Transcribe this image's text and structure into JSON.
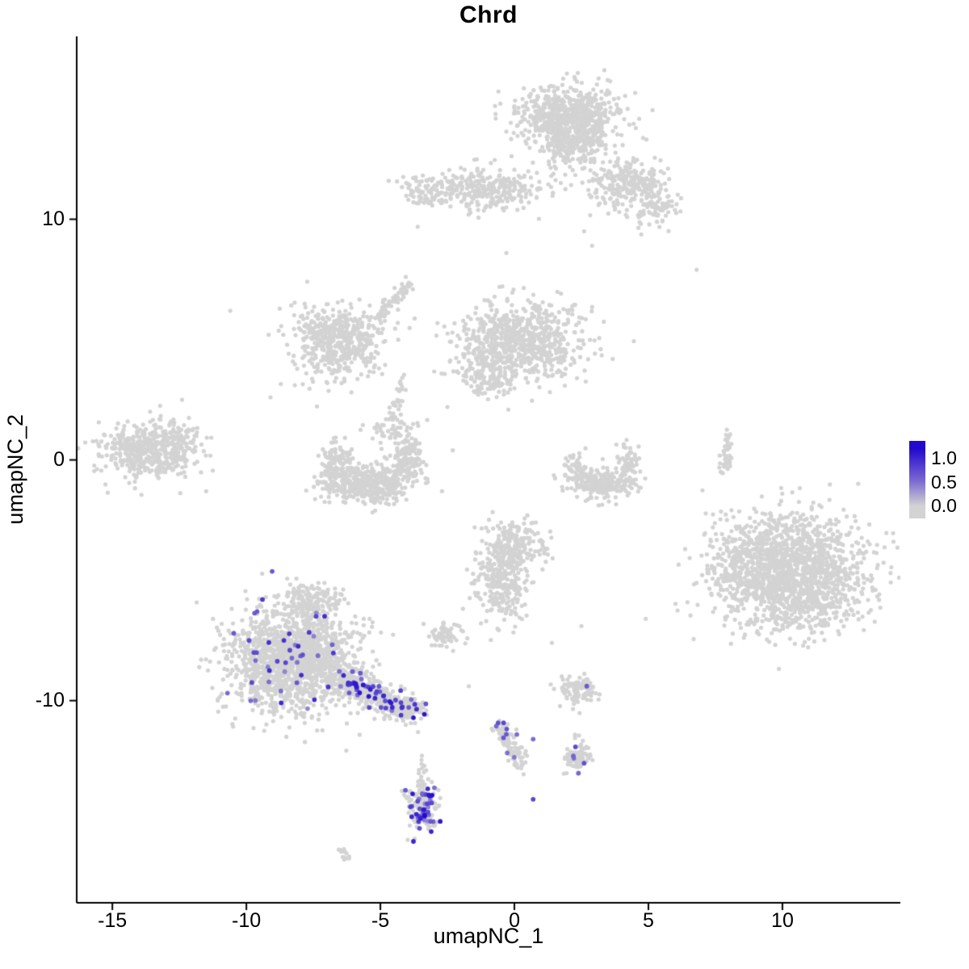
{
  "chart_data": {
    "type": "scatter",
    "title": "Chrd",
    "xlabel": "umapNC_1",
    "ylabel": "umapNC_2",
    "xlim": [
      -16.33,
      14.4
    ],
    "ylim": [
      -18.4,
      17.6
    ],
    "x_ticks": [
      -15,
      -10,
      -5,
      0,
      5,
      10
    ],
    "y_ticks": [
      -10,
      0,
      10
    ],
    "grid": false,
    "point_color_low": "#d3d3d3",
    "point_color_high": "#2209ce",
    "clusters": [
      {
        "name": "top-main",
        "cx": 2.0,
        "cy": 14.3,
        "sx": 0.95,
        "sy": 0.62,
        "n": 650
      },
      {
        "name": "top-lower",
        "cx": 2.2,
        "cy": 13.0,
        "sx": 0.55,
        "sy": 0.5,
        "n": 200
      },
      {
        "name": "top-right-arm",
        "cx": 4.2,
        "cy": 11.5,
        "sx": 0.75,
        "sy": 0.55,
        "n": 240
      },
      {
        "name": "top-right-tip",
        "cx": 5.3,
        "cy": 10.5,
        "sx": 0.45,
        "sy": 0.42,
        "n": 80
      },
      {
        "name": "band",
        "cx": -1.2,
        "cy": 11.3,
        "sx": 1.25,
        "sy": 0.42,
        "n": 320
      },
      {
        "name": "band-left",
        "cx": -3.3,
        "cy": 11.1,
        "sx": 0.4,
        "sy": 0.28,
        "n": 55
      },
      {
        "name": "midleft-main",
        "cx": -6.6,
        "cy": 4.9,
        "sx": 0.85,
        "sy": 0.75,
        "n": 520
      },
      {
        "name": "midleft-arm",
        "type": "line",
        "x1": -5.3,
        "y1": 5.7,
        "x2": -3.9,
        "y2": 7.4,
        "th": 0.16,
        "n": 65
      },
      {
        "name": "mid-chain",
        "type": "line",
        "x1": -4.45,
        "y1": 1.7,
        "x2": -4.2,
        "y2": 3.4,
        "th": 0.12,
        "n": 30
      },
      {
        "name": "middle-main",
        "cx": 0.2,
        "cy": 4.9,
        "sx": 1.15,
        "sy": 0.85,
        "n": 750
      },
      {
        "name": "middle-tail",
        "cx": -1.1,
        "cy": 3.4,
        "sx": 0.5,
        "sy": 0.4,
        "n": 110
      },
      {
        "name": "cup-left",
        "cx": -6.6,
        "cy": -0.1,
        "sx": 0.3,
        "sy": 0.5,
        "n": 120
      },
      {
        "name": "cup-bottom",
        "cx": -5.4,
        "cy": -1.0,
        "sx": 0.85,
        "sy": 0.38,
        "n": 420
      },
      {
        "name": "cup-right",
        "cx": -4.0,
        "cy": 0.2,
        "sx": 0.3,
        "sy": 0.5,
        "n": 130
      },
      {
        "name": "cup-top",
        "cx": -4.7,
        "cy": 1.2,
        "sx": 0.5,
        "sy": 0.28,
        "n": 45
      },
      {
        "name": "far-left",
        "cx": -13.7,
        "cy": 0.4,
        "sx": 0.85,
        "sy": 0.58,
        "n": 470
      },
      {
        "name": "far-left-halo",
        "cx": -12.3,
        "cy": 0.9,
        "sx": 0.5,
        "sy": 0.4,
        "n": 55
      },
      {
        "name": "right-cup-bottom",
        "cx": 3.2,
        "cy": -1.0,
        "sx": 0.6,
        "sy": 0.33,
        "n": 210
      },
      {
        "name": "right-cup-left",
        "cx": 2.3,
        "cy": -0.3,
        "sx": 0.22,
        "sy": 0.4,
        "n": 55
      },
      {
        "name": "right-cup-right",
        "cx": 4.2,
        "cy": -0.2,
        "sx": 0.22,
        "sy": 0.45,
        "n": 65
      },
      {
        "name": "streak",
        "type": "line",
        "x1": 8.0,
        "y1": 1.2,
        "x2": 7.8,
        "y2": -0.4,
        "th": 0.1,
        "n": 45
      },
      {
        "name": "big-right",
        "cx": 10.3,
        "cy": -4.7,
        "sx": 1.35,
        "sy": 1.2,
        "n": 1700
      },
      {
        "name": "big-right-west",
        "cx": 8.2,
        "cy": -4.3,
        "sx": 0.5,
        "sy": 0.9,
        "n": 90
      },
      {
        "name": "center-low-top",
        "cx": 0.0,
        "cy": -3.6,
        "sx": 0.6,
        "sy": 0.5,
        "n": 230
      },
      {
        "name": "center-low-bottom",
        "cx": -0.5,
        "cy": -5.2,
        "sx": 0.5,
        "sy": 0.75,
        "n": 240
      },
      {
        "name": "bottom-left-main",
        "cx": -8.3,
        "cy": -8.3,
        "sx": 1.15,
        "sy": 1.05,
        "n": 1500,
        "expr_frac": 0.025,
        "expr_min": 0.35,
        "expr_max": 0.85
      },
      {
        "name": "bottom-left-top",
        "cx": -7.6,
        "cy": -5.9,
        "sx": 0.6,
        "sy": 0.45,
        "n": 170
      },
      {
        "name": "bottom-left-arm",
        "type": "line",
        "x1": -6.6,
        "y1": -9.0,
        "x2": -4.0,
        "y2": -10.4,
        "th": 0.3,
        "n": 470,
        "expr_frac": 0.09,
        "expr_min": 0.4,
        "expr_max": 0.95
      },
      {
        "name": "arm-tip",
        "cx": -3.9,
        "cy": -10.4,
        "sx": 0.26,
        "sy": 0.3,
        "n": 70,
        "expr_frac": 0.12,
        "expr_min": 0.5,
        "expr_max": 0.95
      },
      {
        "name": "small-blob",
        "cx": -2.6,
        "cy": -7.3,
        "sx": 0.27,
        "sy": 0.22,
        "n": 65
      },
      {
        "name": "small-right-9",
        "cx": 2.4,
        "cy": -9.5,
        "sx": 0.33,
        "sy": 0.27,
        "n": 90
      },
      {
        "name": "chain-down",
        "type": "line",
        "x1": -0.6,
        "y1": -11.0,
        "x2": 0.3,
        "y2": -12.7,
        "th": 0.18,
        "n": 90,
        "expr_frac": 0.05,
        "expr_min": 0.4,
        "expr_max": 0.7
      },
      {
        "name": "small-right-12",
        "cx": 2.4,
        "cy": -12.4,
        "sx": 0.3,
        "sy": 0.27,
        "n": 75,
        "expr_frac": 0.04,
        "expr_min": 0.4,
        "expr_max": 0.7
      },
      {
        "name": "bottom-dense",
        "cx": -3.4,
        "cy": -14.4,
        "sx": 0.28,
        "sy": 0.6,
        "n": 160,
        "expr_frac": 0.3,
        "expr_min": 0.35,
        "expr_max": 1.0
      },
      {
        "name": "bottom-dense-tail",
        "type": "line",
        "x1": -3.6,
        "y1": -12.3,
        "x2": -3.4,
        "y2": -13.5,
        "th": 0.1,
        "n": 14
      },
      {
        "name": "tiny-chain",
        "type": "line",
        "x1": -6.6,
        "y1": -16.1,
        "x2": -6.2,
        "y2": -16.6,
        "th": 0.08,
        "n": 12
      },
      {
        "name": "link-9-12",
        "type": "line",
        "x1": 2.3,
        "y1": -10.0,
        "x2": 2.3,
        "y2": -11.8,
        "th": 0.1,
        "n": 8
      }
    ],
    "singles": [
      [
        -10.6,
        6.2
      ],
      [
        2.6,
        9.5
      ],
      [
        2.9,
        8.9
      ],
      [
        6.8,
        7.9
      ],
      [
        -2.3,
        0.4
      ],
      [
        -2.7,
        -1.3
      ],
      [
        1.4,
        -7.6
      ],
      [
        2.5,
        -6.9
      ],
      [
        4.9,
        -6.6
      ],
      [
        -11.5,
        -1.3
      ],
      [
        -9.1,
        2.6
      ],
      [
        -2.5,
        2.2
      ],
      [
        -0.3,
        8.6
      ],
      [
        0.8,
        -2.6
      ],
      [
        -12.4,
        2.5
      ],
      [
        -1.7,
        -9.4
      ]
    ],
    "highlight_points": [
      [
        2.7,
        -9.4,
        0.6
      ],
      [
        0.7,
        -14.1,
        0.7
      ],
      [
        -9.4,
        -5.8,
        0.75
      ],
      [
        -9.6,
        -6.3,
        0.6
      ],
      [
        -7.4,
        -6.5,
        0.7
      ],
      [
        -0.3,
        -11.4,
        0.6
      ],
      [
        0.7,
        -11.6,
        0.5
      ],
      [
        2.2,
        -12.3,
        0.55
      ],
      [
        2.6,
        -12.6,
        0.65
      ],
      [
        -3.35,
        -14.8,
        1.0
      ],
      [
        -3.3,
        -13.9,
        0.7
      ],
      [
        -3.5,
        -14.9,
        0.9
      ],
      [
        -8.6,
        -7.5,
        0.8
      ],
      [
        -7.9,
        -8.1,
        0.65
      ],
      [
        -6.1,
        -9.3,
        0.8
      ],
      [
        -5.2,
        -9.9,
        0.85
      ],
      [
        -4.6,
        -10.1,
        0.9
      ],
      [
        -4.2,
        -10.3,
        0.8
      ]
    ]
  },
  "legend": {
    "ticks": [
      "1.0",
      "0.5",
      "0.0"
    ],
    "high_color": "#2209ce",
    "mid_color": "#7c6bd1",
    "low_color": "#d3d3d3"
  }
}
